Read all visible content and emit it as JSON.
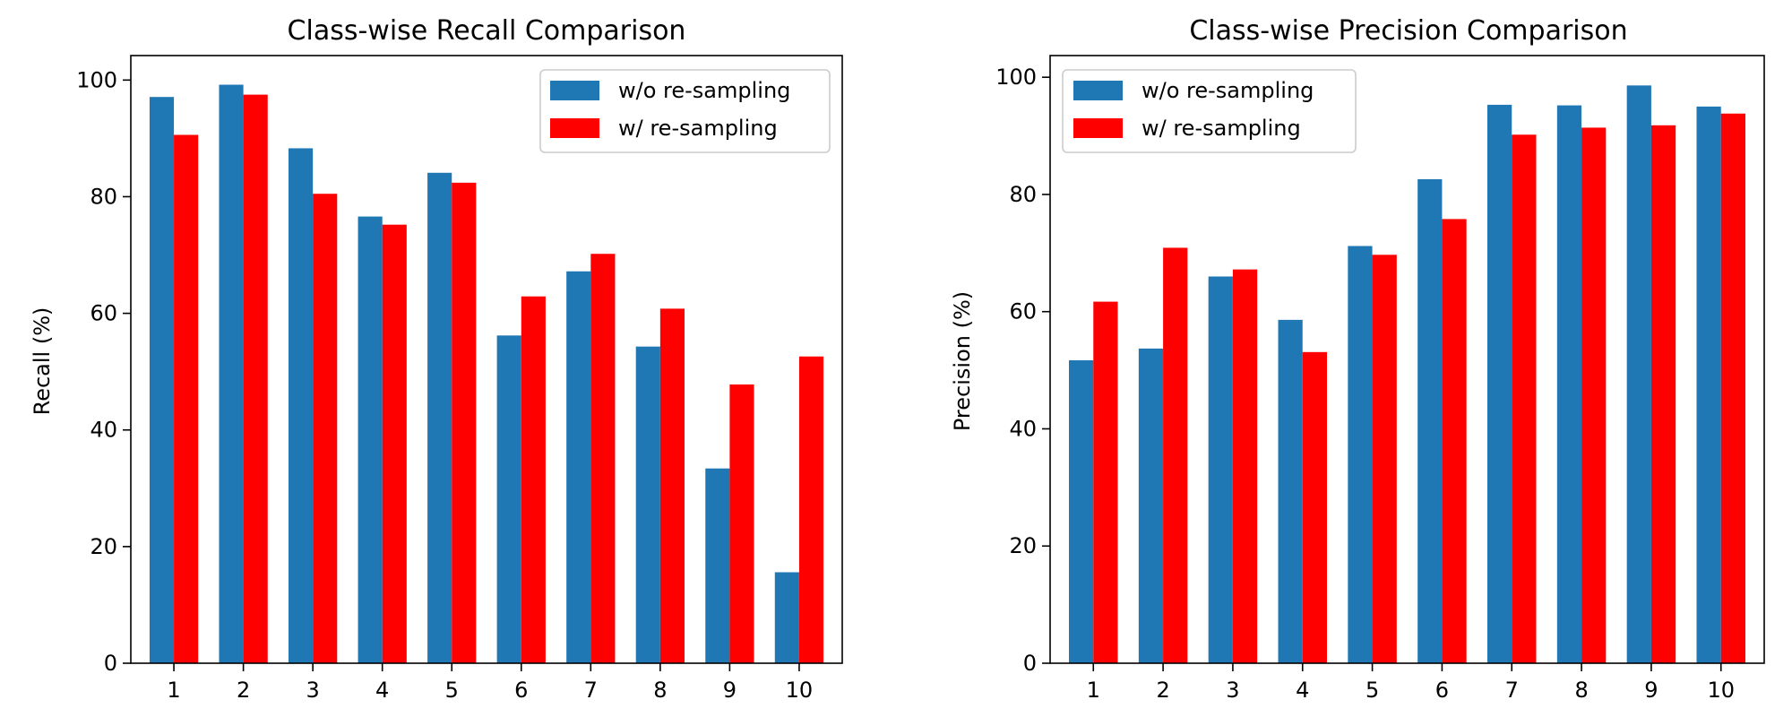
{
  "chart_data": [
    {
      "type": "bar",
      "title": "Class-wise Recall Comparison",
      "xlabel": "",
      "ylabel": "Recall (%)",
      "ylim": [
        0,
        104.2
      ],
      "yticks": [
        0,
        20,
        40,
        60,
        80,
        100
      ],
      "categories": [
        "1",
        "2",
        "3",
        "4",
        "5",
        "6",
        "7",
        "8",
        "9",
        "10"
      ],
      "legend_position": "top-right",
      "series": [
        {
          "name": "w/o re-sampling",
          "color": "#1f77b4",
          "values": [
            97.1,
            99.2,
            88.3,
            76.6,
            84.1,
            56.2,
            67.2,
            54.3,
            33.4,
            15.6
          ]
        },
        {
          "name": "w/ re-sampling",
          "color": "#ff0000",
          "values": [
            90.6,
            97.5,
            80.5,
            75.2,
            82.4,
            62.9,
            70.2,
            60.8,
            47.8,
            52.6
          ]
        }
      ]
    },
    {
      "type": "bar",
      "title": "Class-wise Precision Comparison",
      "xlabel": "",
      "ylabel": "Precision (%)",
      "ylim": [
        0,
        103.7
      ],
      "yticks": [
        0,
        20,
        40,
        60,
        80,
        100
      ],
      "categories": [
        "1",
        "2",
        "3",
        "4",
        "5",
        "6",
        "7",
        "8",
        "9",
        "10"
      ],
      "legend_position": "top-left",
      "series": [
        {
          "name": "w/o re-sampling",
          "color": "#1f77b4",
          "values": [
            51.7,
            53.7,
            66.0,
            58.6,
            71.2,
            82.6,
            95.3,
            95.2,
            98.6,
            95.0
          ]
        },
        {
          "name": "w/ re-sampling",
          "color": "#ff0000",
          "values": [
            61.7,
            70.9,
            67.2,
            53.1,
            69.7,
            75.8,
            90.2,
            91.4,
            91.8,
            93.8
          ]
        }
      ]
    }
  ]
}
